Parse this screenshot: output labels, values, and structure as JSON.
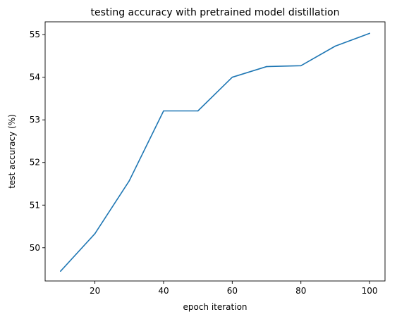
{
  "chart_data": {
    "type": "line",
    "title": "testing accuracy with pretrained model distillation",
    "xlabel": "epoch iteration",
    "ylabel": "test accuracy (%)",
    "xlim": [
      5.5,
      104.5
    ],
    "ylim": [
      49.22,
      55.3
    ],
    "x_ticks": [
      20,
      40,
      60,
      80,
      100
    ],
    "y_ticks": [
      50,
      51,
      52,
      53,
      54,
      55
    ],
    "grid": false,
    "legend": "none",
    "series": [
      {
        "color": "#1f77b4",
        "x": [
          10,
          20,
          30,
          40,
          50,
          60,
          70,
          80,
          90,
          100
        ],
        "y": [
          49.45,
          50.33,
          51.57,
          53.21,
          53.21,
          54.0,
          54.25,
          54.27,
          54.73,
          55.03
        ]
      }
    ]
  }
}
